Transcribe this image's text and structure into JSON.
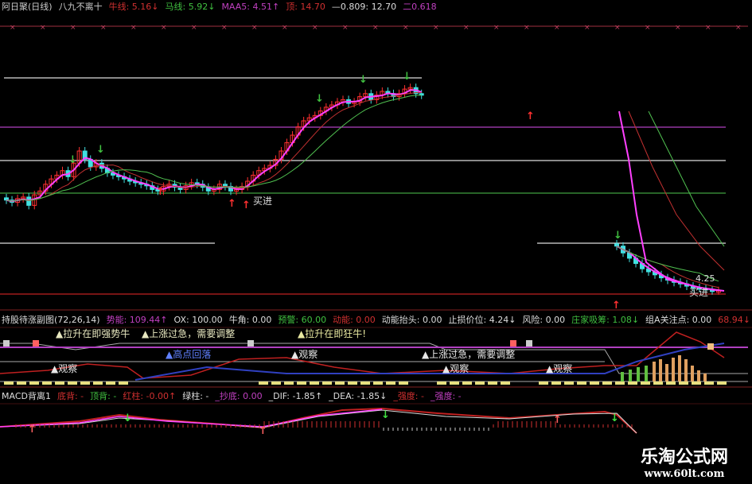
{
  "header_main": [
    {
      "text": "阿日聚(日线)",
      "color": "#cccccc"
    },
    {
      "text": "八九不离十",
      "color": "#cccccc"
    },
    {
      "text": "牛线: 5.16↓",
      "color": "#d03030"
    },
    {
      "text": "马线: 5.92↓",
      "color": "#40c040"
    },
    {
      "text": "MAA5: 4.51↑",
      "color": "#c040c0"
    },
    {
      "text": "顶: 14.70",
      "color": "#d03030"
    },
    {
      "text": "—0.809: 12.70",
      "color": "#dddddd"
    },
    {
      "text": "二0.618",
      "color": "#c040c0"
    }
  ],
  "header_sub": [
    {
      "text": "持股待涨副图(72,26,14)",
      "color": "#dddddd"
    },
    {
      "text": "势能: 109.44↑",
      "color": "#c040c0"
    },
    {
      "text": "OX: 100.00",
      "color": "#dddddd"
    },
    {
      "text": "牛角: 0.00",
      "color": "#dddddd"
    },
    {
      "text": "预警: 60.00",
      "color": "#40c040"
    },
    {
      "text": "动能: 0.00",
      "color": "#d03030"
    },
    {
      "text": "动能抬头: 0.00",
      "color": "#dddddd"
    },
    {
      "text": "止损价位: 4.24↓",
      "color": "#dddddd"
    },
    {
      "text": "风险: 0.00",
      "color": "#dddddd"
    },
    {
      "text": "庄家吸筹: 1.08↓",
      "color": "#40c040"
    },
    {
      "text": "组A关注点: 0.00",
      "color": "#dddddd"
    },
    {
      "text": "68.94↓",
      "color": "#d03030"
    }
  ],
  "header_macd": [
    {
      "text": "MACD背离1",
      "color": "#dddddd"
    },
    {
      "text": "底背: -",
      "color": "#d03030"
    },
    {
      "text": "顶背: -",
      "color": "#40c040"
    },
    {
      "text": "红柱: -0.00↑",
      "color": "#d03030"
    },
    {
      "text": "绿柱: -",
      "color": "#dddddd"
    },
    {
      "text": "_抄底: 0.00",
      "color": "#c040c0"
    },
    {
      "text": "_DIF: -1.85↑",
      "color": "#dddddd"
    },
    {
      "text": "_DEA: -1.85↓",
      "color": "#dddddd"
    },
    {
      "text": "_强度: -",
      "color": "#d03030"
    },
    {
      "text": "_强度: -",
      "color": "#c040c0"
    }
  ],
  "annotations": {
    "buy1": "买进",
    "buy2": "买进",
    "price_label": "4.25",
    "sub_labels": [
      "▲拉升在即强势牛",
      "▲上涨过急，需要调整",
      "▲高点回落",
      "▲观察",
      "▲拉升在即狂牛!",
      "▲观察",
      "▲上涨过急，需要调整",
      "▲观察",
      "▲观察"
    ]
  },
  "watermark": {
    "line1": "乐淘公式网",
    "line2": "www.60lt.com"
  },
  "colors": {
    "up": "#ff3030",
    "down": "#40e0e0",
    "ma_short": "#ff40ff",
    "ma_mid": "#c03030",
    "ma_long": "#50c050",
    "purple": "#b040c0",
    "red": "#c02020",
    "green": "#40a040"
  },
  "chart_data": {
    "type": "candlestick",
    "ylim": [
      4,
      7
    ],
    "segments": [
      {
        "closes": [
          5.35,
          5.32,
          5.37,
          5.39,
          5.28,
          5.42,
          5.47,
          5.56,
          5.63,
          5.68,
          5.74,
          5.66,
          5.84,
          6.0,
          5.89,
          5.79,
          5.84,
          5.77,
          5.71,
          5.68,
          5.66,
          5.63,
          5.6,
          5.58,
          5.56,
          5.54,
          5.49,
          5.47,
          5.53,
          5.56,
          5.52,
          5.49,
          5.54,
          5.58,
          5.56,
          5.52,
          5.47,
          5.49,
          5.56,
          5.53,
          5.47,
          5.49,
          5.53,
          5.6,
          5.68,
          5.74,
          5.77,
          5.81,
          5.89,
          6.0,
          6.11,
          6.21,
          6.32,
          6.4,
          6.44,
          6.47,
          6.53,
          6.58,
          6.61,
          6.65,
          6.68,
          6.63,
          6.65,
          6.72,
          6.76,
          6.68,
          6.74,
          6.79,
          6.76,
          6.72,
          6.76,
          6.82,
          6.84,
          6.76,
          6.74
        ]
      },
      {
        "closes": [
          4.74,
          4.65,
          4.58,
          4.51,
          4.44,
          4.4,
          4.36,
          4.32,
          4.29,
          4.26,
          4.24,
          4.21,
          4.19,
          4.18,
          4.16,
          4.15,
          4.15
        ]
      }
    ],
    "levels": [
      {
        "name": "顶",
        "value": 14.7
      },
      {
        "name": "0.809",
        "value": 12.7
      }
    ]
  }
}
